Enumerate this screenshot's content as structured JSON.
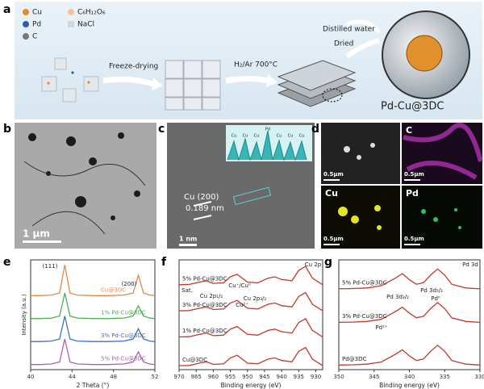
{
  "panel_labels": [
    "a",
    "b",
    "c",
    "d",
    "e",
    "f",
    "g"
  ],
  "scheme": {
    "legend": [
      "Cu",
      "C₆H₁₂O₆",
      "Pd",
      "NaCl",
      "C"
    ],
    "step_1": "Freeze-drying",
    "step_2": "H₂/Ar 700°C",
    "step_3": [
      "Distilled water",
      "Dried"
    ],
    "product": "Pd-Cu@3DC"
  },
  "tem": {
    "scale_bar": "1 μm"
  },
  "hrtem": {
    "plane": "Cu (200)",
    "spacing": "0.189 nm",
    "scale_bar": "1 nm",
    "inset_labels": [
      "Cu",
      "Cu",
      "Cu",
      "Pd",
      "Cu",
      "Cu",
      "Cu"
    ]
  },
  "mapping": {
    "element_labels": [
      "C",
      "Cu",
      "Pd"
    ],
    "scale_bars": [
      "0.5μm",
      "0.5μm",
      "0.5μm",
      "0.5μm"
    ]
  },
  "chart_data": [
    {
      "type": "line",
      "xlabel": "2 Theta (°)",
      "ylabel": "Intensity (a.u.)",
      "xlim": [
        40,
        52
      ],
      "xticks": [
        40,
        44,
        48,
        52
      ],
      "ylim": [
        0,
        4.3
      ],
      "x": [
        40,
        41,
        42,
        42.8,
        43.3,
        43.8,
        44.5,
        46,
        47.5,
        49,
        49.9,
        50.4,
        50.9,
        51.5,
        52
      ],
      "series": [
        {
          "name": "Cu@3DC",
          "color": "#e08a4a",
          "values": [
            2.9,
            2.9,
            2.92,
            3.0,
            4.1,
            3.0,
            2.92,
            2.9,
            2.9,
            2.92,
            3.0,
            3.7,
            3.0,
            2.92,
            2.9
          ]
        },
        {
          "name": "1% Pd-Cu@3DC",
          "color": "#4caf50",
          "values": [
            2.0,
            2.0,
            2.02,
            2.1,
            3.0,
            2.1,
            2.02,
            2.0,
            2.0,
            2.02,
            2.1,
            2.5,
            2.1,
            2.02,
            2.0
          ]
        },
        {
          "name": "3% Pd-Cu@3DC",
          "color": "#3f6fc4",
          "values": [
            1.1,
            1.1,
            1.12,
            1.2,
            2.1,
            1.2,
            1.12,
            1.1,
            1.1,
            1.12,
            1.2,
            1.6,
            1.2,
            1.12,
            1.1
          ]
        },
        {
          "name": "5% Pd-Cu@3DC",
          "color": "#b05fb0",
          "values": [
            0.2,
            0.2,
            0.22,
            0.3,
            1.2,
            0.3,
            0.22,
            0.2,
            0.2,
            0.22,
            0.3,
            0.7,
            0.3,
            0.22,
            0.2
          ]
        }
      ],
      "annotations": [
        "(111)",
        "(200)"
      ]
    },
    {
      "type": "line",
      "xlabel": "Binding energy (eV)",
      "xlim": [
        970,
        928
      ],
      "xticks": [
        970,
        965,
        960,
        955,
        950,
        945,
        940,
        935,
        930
      ],
      "ylim": [
        0,
        4.2
      ],
      "x": [
        970,
        967,
        964,
        962,
        960,
        957,
        955,
        953,
        950,
        947,
        944,
        942,
        940,
        937,
        935,
        933,
        931,
        928
      ],
      "series": [
        {
          "name": "5% Pd-Cu@3DC",
          "color": "#c0392b",
          "values": [
            3.25,
            3.26,
            3.35,
            3.4,
            3.3,
            3.32,
            3.55,
            3.65,
            3.35,
            3.32,
            3.5,
            3.55,
            3.45,
            3.4,
            3.8,
            3.95,
            3.5,
            3.25
          ]
        },
        {
          "name": "3% Pd-Cu@3DC",
          "color": "#c0392b",
          "values": [
            2.25,
            2.26,
            2.35,
            2.4,
            2.3,
            2.32,
            2.55,
            2.65,
            2.35,
            2.32,
            2.5,
            2.55,
            2.45,
            2.4,
            2.8,
            2.95,
            2.5,
            2.25
          ]
        },
        {
          "name": "1% Pd-Cu@3DC",
          "color": "#c0392b",
          "values": [
            1.25,
            1.26,
            1.35,
            1.4,
            1.3,
            1.32,
            1.55,
            1.65,
            1.35,
            1.32,
            1.5,
            1.55,
            1.45,
            1.4,
            1.8,
            1.95,
            1.5,
            1.25
          ]
        },
        {
          "name": "Cu@3DC",
          "color": "#c0392b",
          "values": [
            0.15,
            0.16,
            0.25,
            0.3,
            0.2,
            0.22,
            0.45,
            0.55,
            0.25,
            0.22,
            0.4,
            0.45,
            0.35,
            0.3,
            0.7,
            0.85,
            0.4,
            0.15
          ]
        }
      ],
      "annotations": [
        "Cu 2p",
        "Sat.",
        "Cu 2p₁/₂",
        "Cu 2p₃/₂",
        "Cu⁺/Cu⁰",
        "Cu²⁺"
      ]
    },
    {
      "type": "line",
      "xlabel": "Binding energy (eV)",
      "xlim": [
        350,
        330
      ],
      "xticks": [
        350,
        345,
        340,
        335,
        330
      ],
      "ylim": [
        0,
        3.6
      ],
      "x": [
        350,
        348,
        346,
        344,
        342,
        341,
        340,
        339,
        338,
        337,
        336,
        335,
        334,
        332,
        330
      ],
      "series": [
        {
          "name": "5% Pd-Cu@3DC",
          "color": "#c0392b",
          "values": [
            2.65,
            2.66,
            2.68,
            2.75,
            3.0,
            3.15,
            2.95,
            2.8,
            2.85,
            3.1,
            3.3,
            3.1,
            2.8,
            2.68,
            2.65
          ]
        },
        {
          "name": "3% Pd-Cu@3DC",
          "color": "#c0392b",
          "values": [
            1.55,
            1.56,
            1.58,
            1.65,
            1.9,
            2.05,
            1.85,
            1.7,
            1.75,
            2.0,
            2.2,
            2.0,
            1.7,
            1.58,
            1.55
          ]
        },
        {
          "name": "Pd@3DC",
          "color": "#c0392b",
          "values": [
            0.15,
            0.16,
            0.18,
            0.25,
            0.5,
            0.65,
            0.45,
            0.3,
            0.35,
            0.6,
            0.8,
            0.6,
            0.3,
            0.18,
            0.15
          ]
        }
      ],
      "annotations": [
        "Pd 3d",
        "Pd 3d₃/₂",
        "Pd 3d₅/₂",
        "Pd⁰",
        "Pd²⁺"
      ]
    }
  ]
}
